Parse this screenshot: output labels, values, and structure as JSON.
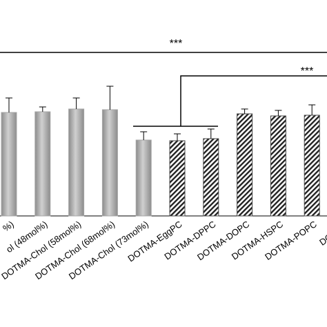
{
  "chart_data": {
    "type": "bar",
    "categories": [
      "%)",
      "ol (48mol%)",
      "DOTMA-Chol (58mol%)",
      "DOTMA-Chol (68mol%)",
      "DOTMA-Chol (73mol%)",
      "DOTMA-EggPC",
      "DOTMA-DPPC",
      "DOTMA-DOPC",
      "DOTMA-HSPC",
      "DOTMA-POPC",
      "DOTMA-"
    ],
    "values": [
      75,
      75.5,
      77.5,
      77,
      55,
      54.5,
      56,
      74,
      72.5,
      73,
      null
    ],
    "errors": [
      10.5,
      3.5,
      8,
      17,
      6,
      5,
      7,
      3.5,
      4,
      7.5,
      null
    ],
    "patterns": [
      "solid",
      "solid",
      "solid",
      "solid",
      "solid",
      "hatch",
      "hatch",
      "hatch",
      "hatch",
      "hatch",
      "hatch"
    ],
    "color": "#a6a6a6",
    "ylim": [
      0,
      156.5
    ],
    "annotations": [
      "***",
      "***"
    ]
  }
}
